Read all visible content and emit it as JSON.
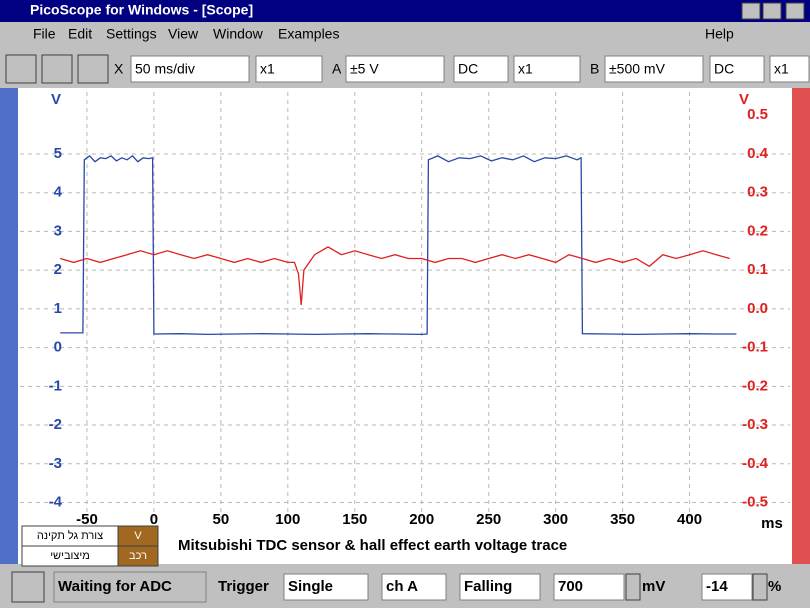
{
  "window": {
    "title": "PicoScope for Windows - [Scope]"
  },
  "menu": [
    "File",
    "Edit",
    "Settings",
    "View",
    "Window",
    "Examples",
    "Help"
  ],
  "toolbar": {
    "x_label": "X",
    "timebase": "50 ms/div",
    "x_mult": "x1",
    "a_label": "A",
    "a_range": "±5 V",
    "a_coupling": "DC",
    "a_mult": "x1",
    "b_label": "B",
    "b_range": "±500 mV",
    "b_coupling": "DC",
    "b_mult": "x1"
  },
  "chart_data": {
    "type": "line",
    "y_label": "V",
    "y2_label": "V",
    "x_label": "ms",
    "caption": "Mitsubishi TDC sensor & hall effect earth voltage trace",
    "xlim": [
      -100,
      475
    ],
    "xticks": [
      -50,
      0,
      50,
      100,
      150,
      200,
      250,
      300,
      350,
      400
    ],
    "ylim": [
      -4.4,
      6.6
    ],
    "yticks": [
      -4,
      -3,
      -2,
      -1,
      0,
      1,
      2,
      3,
      4,
      5
    ],
    "y2lim": [
      -0.54,
      0.56
    ],
    "y2ticks": [
      -0.5,
      -0.4,
      -0.3,
      -0.2,
      -0.1,
      {
        "value": 0,
        "label": "0.0"
      },
      0.1,
      0.2,
      0.3,
      0.4,
      0.5
    ],
    "grid": true,
    "series": [
      {
        "color": "#2848a8",
        "axis": "y",
        "x": [
          -70,
          -53,
          -52,
          -48,
          -44,
          -40,
          -36,
          -32,
          -28,
          -24,
          -20,
          -16,
          -12,
          -8,
          -4,
          -1,
          0,
          20,
          40,
          60,
          80,
          100,
          120,
          140,
          160,
          180,
          200,
          204,
          205,
          212,
          220,
          228,
          236,
          244,
          252,
          260,
          268,
          276,
          284,
          292,
          300,
          308,
          316,
          319,
          320,
          340,
          360,
          380,
          400,
          420,
          435
        ],
        "values": [
          0.38,
          0.38,
          4.85,
          4.95,
          4.8,
          4.9,
          4.88,
          4.95,
          4.82,
          4.9,
          4.85,
          4.95,
          4.8,
          4.9,
          4.88,
          4.9,
          0.35,
          0.36,
          0.34,
          0.35,
          0.36,
          0.35,
          0.34,
          0.35,
          0.36,
          0.35,
          0.34,
          0.35,
          4.85,
          4.95,
          4.8,
          4.9,
          4.88,
          4.95,
          4.82,
          4.9,
          4.85,
          4.95,
          4.8,
          4.9,
          4.88,
          4.95,
          4.85,
          4.9,
          0.36,
          0.35,
          0.34,
          0.35,
          0.36,
          0.35,
          0.35
        ]
      },
      {
        "color": "#e02020",
        "axis": "y2",
        "x": [
          -70,
          -60,
          -50,
          -40,
          -30,
          -20,
          -10,
          0,
          10,
          20,
          30,
          40,
          50,
          60,
          70,
          80,
          90,
          100,
          105,
          108,
          110,
          112,
          120,
          130,
          140,
          150,
          160,
          170,
          180,
          190,
          200,
          210,
          220,
          230,
          240,
          250,
          260,
          270,
          280,
          290,
          300,
          310,
          320,
          330,
          340,
          350,
          360,
          370,
          380,
          390,
          400,
          410,
          420,
          430
        ],
        "values": [
          0.13,
          0.12,
          0.13,
          0.12,
          0.13,
          0.14,
          0.15,
          0.14,
          0.15,
          0.14,
          0.13,
          0.14,
          0.13,
          0.12,
          0.13,
          0.12,
          0.13,
          0.12,
          0.12,
          0.09,
          0.01,
          0.1,
          0.14,
          0.16,
          0.14,
          0.15,
          0.14,
          0.13,
          0.14,
          0.13,
          0.13,
          0.12,
          0.13,
          0.13,
          0.12,
          0.13,
          0.14,
          0.13,
          0.14,
          0.13,
          0.12,
          0.14,
          0.13,
          0.12,
          0.13,
          0.12,
          0.13,
          0.11,
          0.14,
          0.13,
          0.14,
          0.15,
          0.14,
          0.13
        ]
      }
    ]
  },
  "legend_panel": [
    [
      "צורת גל תקינה",
      "V"
    ],
    [
      "מיצובישי",
      "רכב"
    ]
  ],
  "status": {
    "state": "Waiting for ADC",
    "trigger_label": "Trigger",
    "mode": "Single",
    "channel": "ch A",
    "edge": "Falling",
    "level": "700",
    "level_unit": "mV",
    "delay": "-14",
    "delay_unit": "%"
  }
}
